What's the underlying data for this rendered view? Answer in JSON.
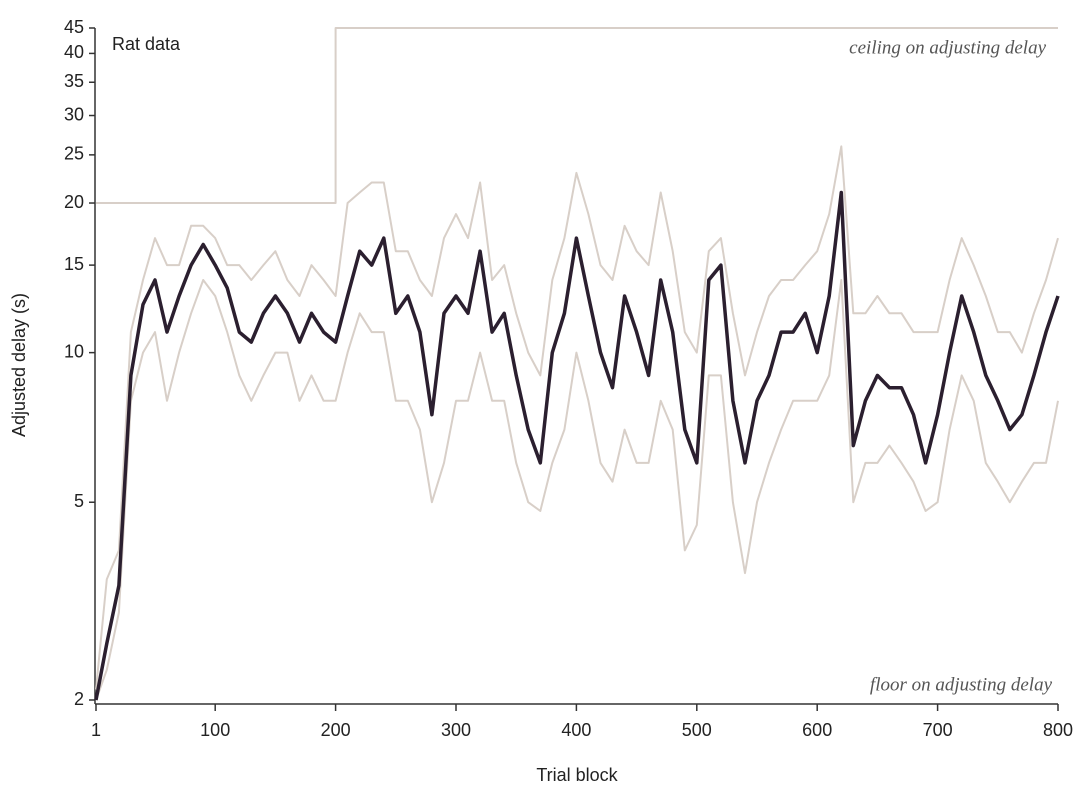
{
  "chart_data": {
    "type": "line",
    "annotations": [
      "Rat data",
      "ceiling on adjusting delay",
      "floor on adjusting delay"
    ],
    "xlabel": "Trial block",
    "ylabel": "Adjusted delay (s)",
    "ylog": true,
    "xlim": [
      1,
      800
    ],
    "xticks": [
      1,
      100,
      200,
      300,
      400,
      500,
      600,
      700,
      800
    ],
    "ylim": [
      2,
      45
    ],
    "yticks": [
      2,
      5,
      10,
      15,
      20,
      25,
      30,
      35,
      40,
      45
    ],
    "x": [
      1,
      10,
      20,
      30,
      40,
      50,
      60,
      70,
      80,
      90,
      100,
      110,
      120,
      130,
      140,
      150,
      160,
      170,
      180,
      190,
      200,
      210,
      220,
      230,
      240,
      250,
      260,
      270,
      280,
      290,
      300,
      310,
      320,
      330,
      340,
      350,
      360,
      370,
      380,
      390,
      400,
      410,
      420,
      430,
      440,
      450,
      460,
      470,
      480,
      490,
      500,
      510,
      520,
      530,
      540,
      550,
      560,
      570,
      580,
      590,
      600,
      610,
      620,
      630,
      640,
      650,
      660,
      670,
      680,
      690,
      700,
      710,
      720,
      730,
      740,
      750,
      760,
      770,
      780,
      790,
      800
    ],
    "series": [
      {
        "color": "#d8cfc8",
        "line_width": 2,
        "x": [
          1,
          200,
          200,
          800
        ],
        "values": [
          20,
          20,
          45,
          45
        ]
      },
      {
        "color": "#d8cfc8",
        "line_width": 2,
        "values": [
          2.1,
          3.5,
          4,
          11,
          14,
          17,
          15,
          15,
          18,
          18,
          17,
          15,
          15,
          14,
          15,
          16,
          14,
          13,
          15,
          14,
          13,
          20,
          21,
          22,
          22,
          16,
          16,
          14,
          13,
          17,
          19,
          17,
          22,
          14,
          15,
          12,
          10,
          9,
          14,
          17,
          23,
          19,
          15,
          14,
          18,
          16,
          15,
          21,
          16,
          11,
          10,
          16,
          17,
          12,
          9,
          11,
          13,
          14,
          14,
          15,
          16,
          19,
          26,
          12,
          12,
          13,
          12,
          12,
          11,
          11,
          11,
          14,
          17,
          15,
          13,
          11,
          11,
          10,
          12,
          14,
          17
        ]
      },
      {
        "color": "#d8cfc8",
        "line_width": 2,
        "values": [
          2,
          2.3,
          3,
          8,
          10,
          11,
          8,
          10,
          12,
          14,
          13,
          11,
          9,
          8,
          9,
          10,
          10,
          8,
          9,
          8,
          8,
          10,
          12,
          11,
          11,
          8,
          8,
          7,
          5,
          6,
          8,
          8,
          10,
          8,
          8,
          6,
          5,
          4.8,
          6,
          7,
          10,
          8,
          6,
          5.5,
          7,
          6,
          6,
          8,
          7,
          4,
          4.5,
          9,
          9,
          5,
          3.6,
          5,
          6,
          7,
          8,
          8,
          8,
          9,
          14,
          5,
          6,
          6,
          6.5,
          6,
          5.5,
          4.8,
          5,
          7,
          9,
          8,
          6,
          5.5,
          5,
          5.5,
          6,
          6,
          8
        ]
      },
      {
        "color": "#2b1f2f",
        "line_width": 3.5,
        "values": [
          2,
          2.6,
          3.4,
          9,
          12.5,
          14,
          11,
          13,
          15,
          16.5,
          15,
          13.5,
          11,
          10.5,
          12,
          13,
          12,
          10.5,
          12,
          11,
          10.5,
          13,
          16,
          15,
          17,
          12,
          13,
          11,
          7.5,
          12,
          13,
          12,
          16,
          11,
          12,
          9,
          7,
          6,
          10,
          12,
          17,
          13,
          10,
          8.5,
          13,
          11,
          9,
          14,
          11,
          7,
          6,
          14,
          15,
          8,
          6,
          8,
          9,
          11,
          11,
          12,
          10,
          13,
          21,
          6.5,
          8,
          9,
          8.5,
          8.5,
          7.5,
          6,
          7.5,
          10,
          13,
          11,
          9,
          8,
          7,
          7.5,
          9,
          11,
          13
        ]
      }
    ]
  }
}
